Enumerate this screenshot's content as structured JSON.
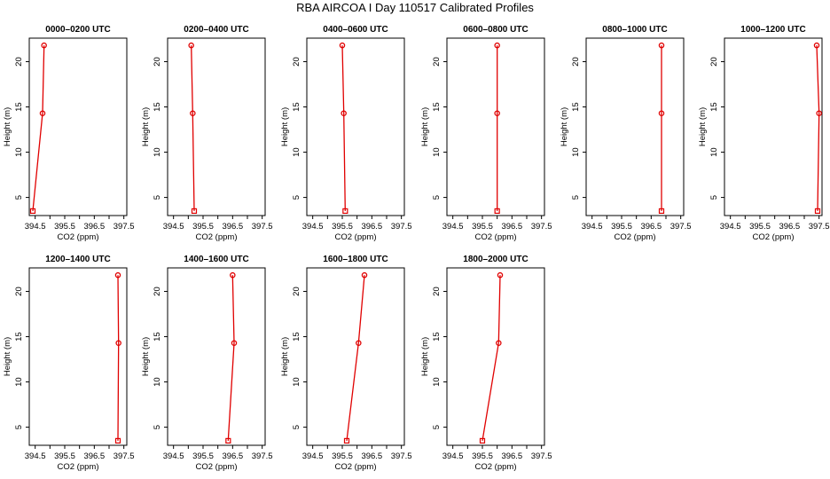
{
  "title": "RBA AIRCOA I  Day 110517  Calibrated Profiles",
  "colors": {
    "series": "#e00000",
    "axis": "#000000"
  },
  "chart_data": {
    "type": "line",
    "xlabel": "CO2 (ppm)",
    "ylabel": "Height (m)",
    "xlim": [
      394.3,
      397.6
    ],
    "ylim": [
      3,
      22.6
    ],
    "xticks": [
      "394.5",
      "395.5",
      "396.5",
      "397.5"
    ],
    "xtick_values": [
      394.5,
      395,
      395.5,
      396,
      396.5,
      397,
      397.5
    ],
    "yticks": [
      "5",
      "10",
      "15",
      "20"
    ],
    "ytick_values": [
      5,
      10,
      15,
      20
    ],
    "panels": [
      {
        "title": "0000–0200 UTC",
        "points": [
          {
            "x": 394.42,
            "y": 3.5
          },
          {
            "x": 394.75,
            "y": 14.3
          },
          {
            "x": 394.8,
            "y": 21.8
          }
        ]
      },
      {
        "title": "0200–0400 UTC",
        "points": [
          {
            "x": 395.2,
            "y": 3.5
          },
          {
            "x": 395.15,
            "y": 14.3
          },
          {
            "x": 395.1,
            "y": 21.8
          }
        ]
      },
      {
        "title": "0400–0600 UTC",
        "points": [
          {
            "x": 395.6,
            "y": 3.5
          },
          {
            "x": 395.55,
            "y": 14.3
          },
          {
            "x": 395.5,
            "y": 21.8
          }
        ]
      },
      {
        "title": "0600–0800 UTC",
        "points": [
          {
            "x": 396.0,
            "y": 3.5
          },
          {
            "x": 396.0,
            "y": 14.3
          },
          {
            "x": 396.0,
            "y": 21.8
          }
        ]
      },
      {
        "title": "0800–1000 UTC",
        "points": [
          {
            "x": 396.85,
            "y": 3.5
          },
          {
            "x": 396.85,
            "y": 14.3
          },
          {
            "x": 396.85,
            "y": 21.8
          }
        ]
      },
      {
        "title": "1000–1200 UTC",
        "points": [
          {
            "x": 397.45,
            "y": 3.5
          },
          {
            "x": 397.5,
            "y": 14.3
          },
          {
            "x": 397.42,
            "y": 21.8
          }
        ]
      },
      {
        "title": "1200–1400 UTC",
        "points": [
          {
            "x": 397.3,
            "y": 3.5
          },
          {
            "x": 397.32,
            "y": 14.3
          },
          {
            "x": 397.3,
            "y": 21.8
          }
        ]
      },
      {
        "title": "1400–1600 UTC",
        "points": [
          {
            "x": 396.35,
            "y": 3.5
          },
          {
            "x": 396.55,
            "y": 14.3
          },
          {
            "x": 396.5,
            "y": 21.8
          }
        ]
      },
      {
        "title": "1600–1800 UTC",
        "points": [
          {
            "x": 395.65,
            "y": 3.5
          },
          {
            "x": 396.05,
            "y": 14.3
          },
          {
            "x": 396.25,
            "y": 21.8
          }
        ]
      },
      {
        "title": "1800–2000 UTC",
        "points": [
          {
            "x": 395.5,
            "y": 3.5
          },
          {
            "x": 396.05,
            "y": 14.3
          },
          {
            "x": 396.1,
            "y": 21.8
          }
        ]
      }
    ]
  }
}
